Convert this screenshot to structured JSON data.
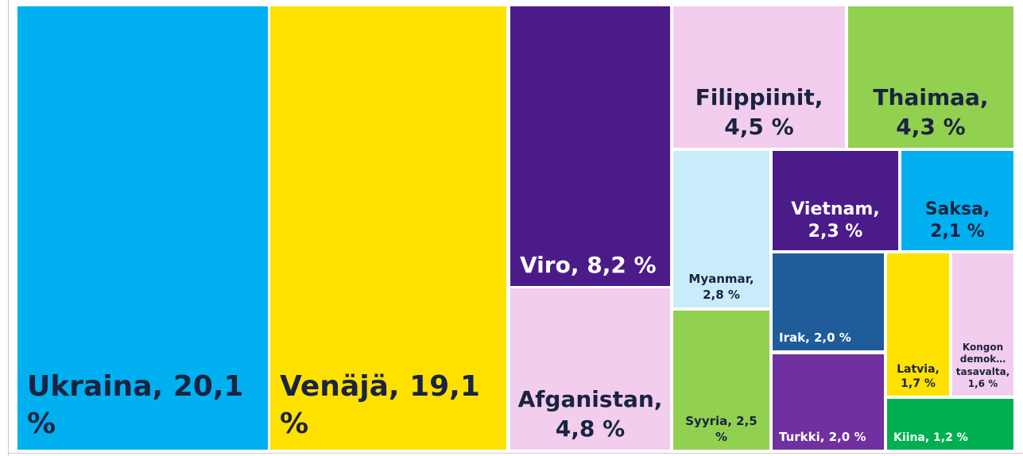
{
  "chart_data": {
    "type": "treemap",
    "categories": [
      "Ukraina, 20,1 %",
      "Venäjä, 19,1 %",
      "Viro, 8,2 %",
      "Afganistan, 4,8 %",
      "Filippiinit, 4,5 %",
      "Thaimaa, 4,3 %",
      "Myanmar, 2,8 %",
      "Syyria, 2,5 %",
      "Vietnam, 2,3 %",
      "Saksa, 2,1 %",
      "Irak, 2,0 %",
      "Turkki, 2,0 %",
      "Latvia, 1,7 %",
      "Kongon demok… tasavalta, 1,6 %",
      "Kiina, 1,2 %"
    ],
    "values": [
      20.1,
      19.1,
      8.2,
      4.8,
      4.5,
      4.3,
      2.8,
      2.5,
      2.3,
      2.1,
      2.0,
      2.0,
      1.7,
      1.6,
      1.2
    ],
    "colors": [
      "#00b0f0",
      "#ffe100",
      "#4b1c89",
      "#f2cdee",
      "#f2cdee",
      "#92d050",
      "#c9ecfa",
      "#92d050",
      "#4b1c89",
      "#00b0f0",
      "#1f5c99",
      "#7030a0",
      "#ffe100",
      "#f2cdee",
      "#00b050"
    ]
  }
}
